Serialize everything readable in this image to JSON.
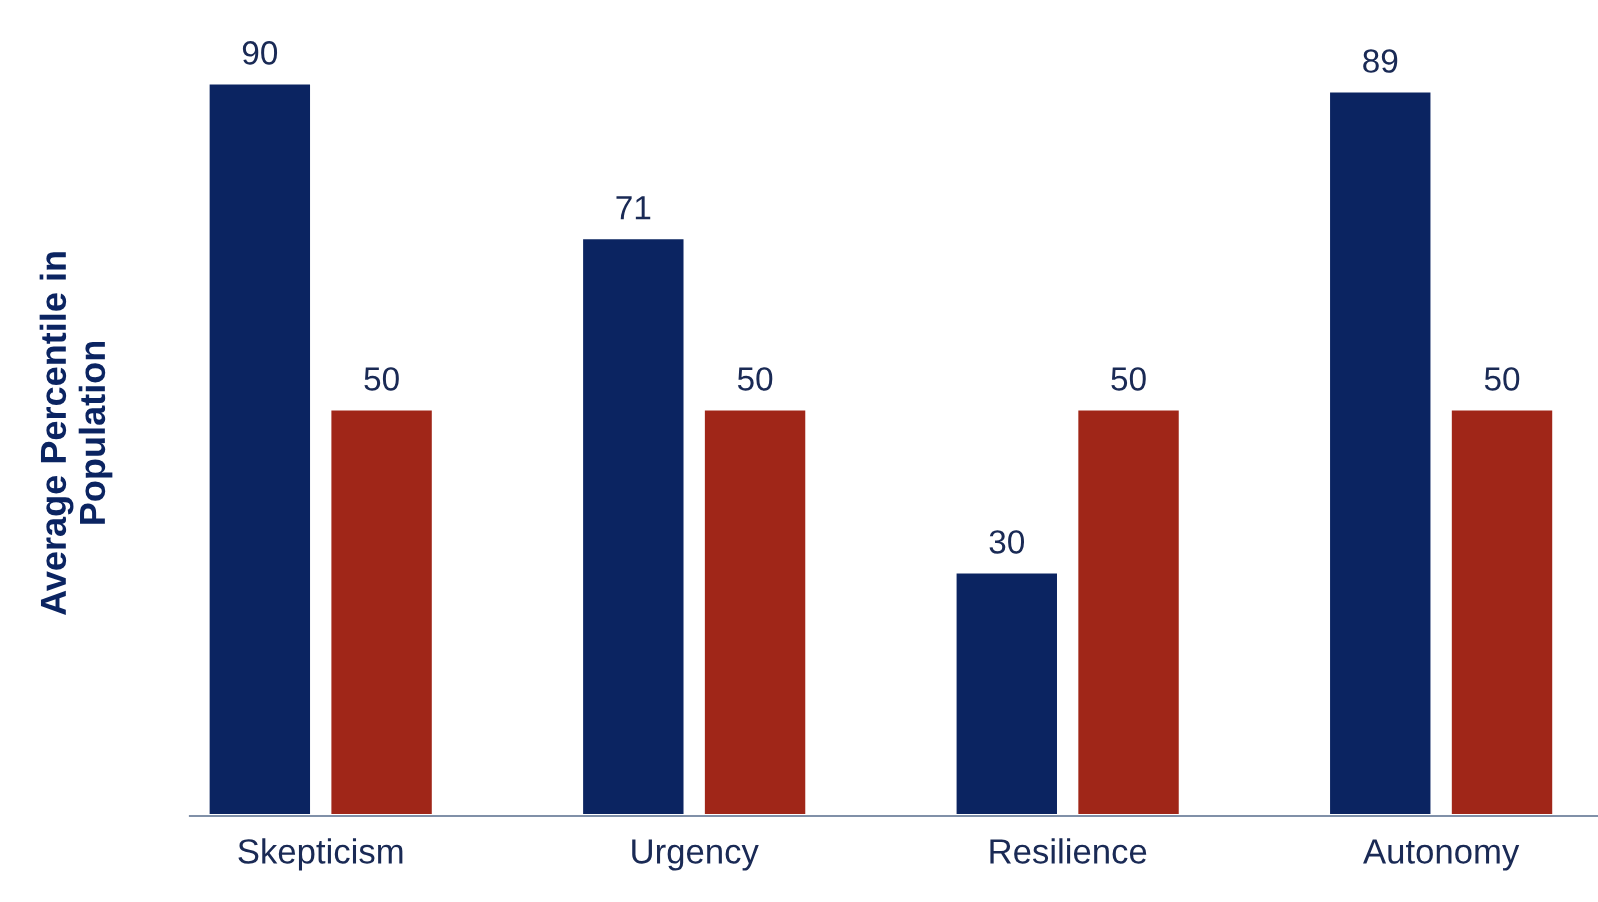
{
  "chart_data": {
    "type": "bar",
    "ylabel": "Average Percentile in Population",
    "categories": [
      "Skepticism",
      "Urgency",
      "Resilience",
      "Autonomy"
    ],
    "series": [
      {
        "color": "#0b2461",
        "values": [
          90,
          71,
          30,
          89
        ]
      },
      {
        "color": "#a02618",
        "values": [
          50,
          50,
          50,
          50
        ]
      }
    ],
    "data_labels": true,
    "grid": false,
    "legend": false
  }
}
